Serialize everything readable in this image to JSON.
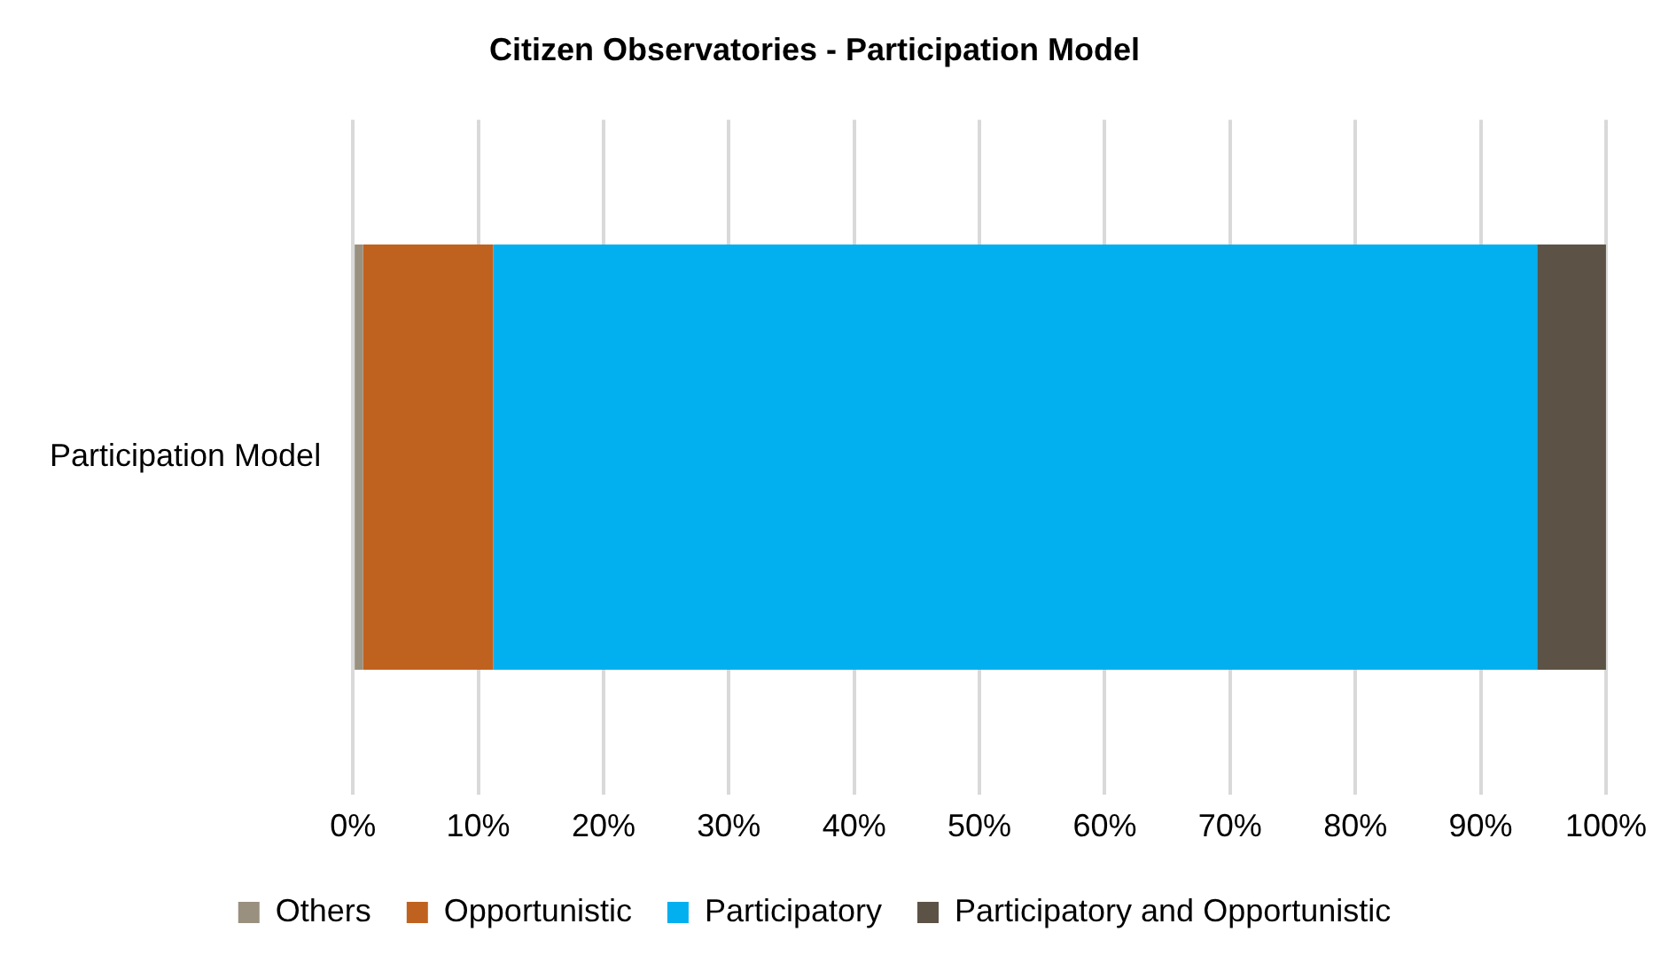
{
  "chart_data": {
    "type": "bar",
    "orientation": "horizontal",
    "stacked": true,
    "title": "Citizen Observatories - Participation Model",
    "categories": [
      "Participation Model"
    ],
    "series": [
      {
        "name": "Others",
        "color": "#9a9080",
        "values": [
          0.8
        ]
      },
      {
        "name": "Opportunistic",
        "color": "#c0621f",
        "values": [
          10.4
        ]
      },
      {
        "name": "Participatory",
        "color": "#02b0ef",
        "values": [
          83.3
        ]
      },
      {
        "name": "Participatory and Opportunistic",
        "color": "#5c5346",
        "values": [
          5.5
        ]
      }
    ],
    "xlim": [
      0,
      100
    ],
    "xticks": [
      {
        "value": 0,
        "label": "0%"
      },
      {
        "value": 10,
        "label": "10%"
      },
      {
        "value": 20,
        "label": "20%"
      },
      {
        "value": 30,
        "label": "30%"
      },
      {
        "value": 40,
        "label": "40%"
      },
      {
        "value": 50,
        "label": "50%"
      },
      {
        "value": 60,
        "label": "60%"
      },
      {
        "value": 70,
        "label": "70%"
      },
      {
        "value": 80,
        "label": "80%"
      },
      {
        "value": 90,
        "label": "90%"
      },
      {
        "value": 100,
        "label": "100%"
      }
    ],
    "grid": "x",
    "legend": "bottom"
  }
}
